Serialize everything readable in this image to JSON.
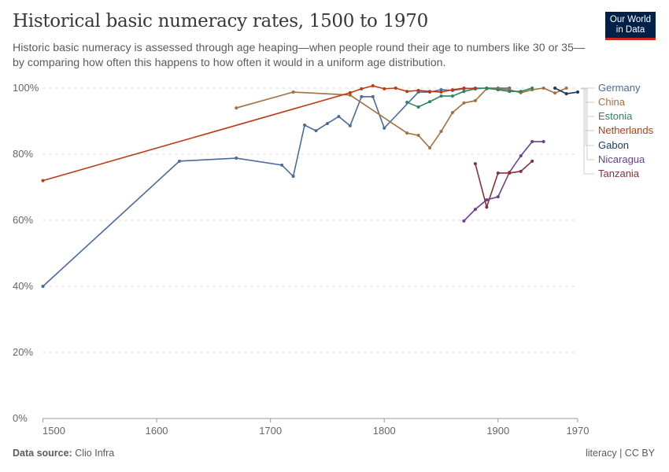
{
  "header": {
    "title": "Historical basic numeracy rates, 1500 to 1970",
    "subtitle": "Historic basic numeracy is assessed through age heaping—when people round their age to numbers like 30 or 35—by comparing how often this happens to how often it would in a uniform age distribution.",
    "logo": "Our World in Data"
  },
  "footer": {
    "source_label": "Data source:",
    "source": "Clio Infra",
    "license": "literacy | CC BY"
  },
  "chart_data": {
    "type": "line",
    "title": "Historical basic numeracy rates, 1500 to 1970",
    "xlim": [
      1500,
      1970
    ],
    "ylim": [
      0,
      100
    ],
    "x_ticks": [
      1500,
      1600,
      1700,
      1800,
      1900,
      1970
    ],
    "y_ticks": [
      0,
      20,
      40,
      60,
      80,
      100
    ],
    "y_tick_labels": [
      "0%",
      "20%",
      "40%",
      "60%",
      "80%",
      "100%"
    ],
    "grid": "horizontal dashed",
    "legend": "right",
    "series": [
      {
        "name": "Germany",
        "color": "#4c6a9c",
        "x": [
          1500,
          1620,
          1670,
          1710,
          1720,
          1730,
          1740,
          1750,
          1760,
          1770,
          1780,
          1790,
          1800,
          1830,
          1840,
          1850,
          1860,
          1870,
          1880,
          1890,
          1900,
          1910
        ],
        "y": [
          40,
          77.9,
          78.8,
          76.7,
          73.3,
          88.8,
          87.1,
          89.3,
          91.4,
          88.6,
          97.4,
          97.4,
          87.9,
          98.8,
          98.8,
          99.5,
          99.3,
          99.8,
          100,
          100,
          100,
          100
        ]
      },
      {
        "name": "China",
        "color": "#a2703d",
        "x": [
          1670,
          1720,
          1770,
          1820,
          1830,
          1840,
          1850,
          1860,
          1870,
          1880,
          1890,
          1900,
          1910,
          1920,
          1930,
          1940,
          1950,
          1960
        ],
        "y": [
          94,
          98.8,
          97.9,
          86.4,
          85.7,
          81.9,
          86.9,
          92.6,
          95.5,
          96.2,
          99.8,
          99.8,
          99.5,
          98.6,
          99.5,
          100,
          98.5,
          100
        ]
      },
      {
        "name": "Estonia",
        "color": "#2c8465",
        "x": [
          1820,
          1830,
          1840,
          1850,
          1860,
          1870,
          1880,
          1890,
          1900,
          1910,
          1920,
          1930
        ],
        "y": [
          95.7,
          94.3,
          95.9,
          97.6,
          97.6,
          99,
          99.8,
          100,
          99.5,
          99,
          99,
          100
        ]
      },
      {
        "name": "Netherlands",
        "color": "#be3a13",
        "x": [
          1500,
          1770,
          1780,
          1790,
          1800,
          1810,
          1820,
          1830,
          1840,
          1850,
          1860,
          1870,
          1880
        ],
        "y": [
          72,
          98.6,
          99.8,
          100.7,
          99.8,
          100,
          99,
          99.3,
          99,
          98.8,
          99.5,
          100,
          99.8
        ]
      },
      {
        "name": "Gabon",
        "color": "#18375f",
        "x": [
          1950,
          1960,
          1970
        ],
        "y": [
          100,
          98.3,
          98.8
        ]
      },
      {
        "name": "Nicaragua",
        "color": "#6d3e91",
        "x": [
          1870,
          1880,
          1890,
          1900,
          1910,
          1920,
          1930,
          1940
        ],
        "y": [
          59.8,
          63.3,
          66.2,
          67.1,
          74.5,
          79.5,
          83.8,
          83.8
        ]
      },
      {
        "name": "Tanzania",
        "color": "#883039",
        "x": [
          1880,
          1890,
          1900,
          1910,
          1920,
          1930
        ],
        "y": [
          77.1,
          64,
          74.3,
          74.3,
          74.8,
          77.9
        ]
      }
    ]
  }
}
